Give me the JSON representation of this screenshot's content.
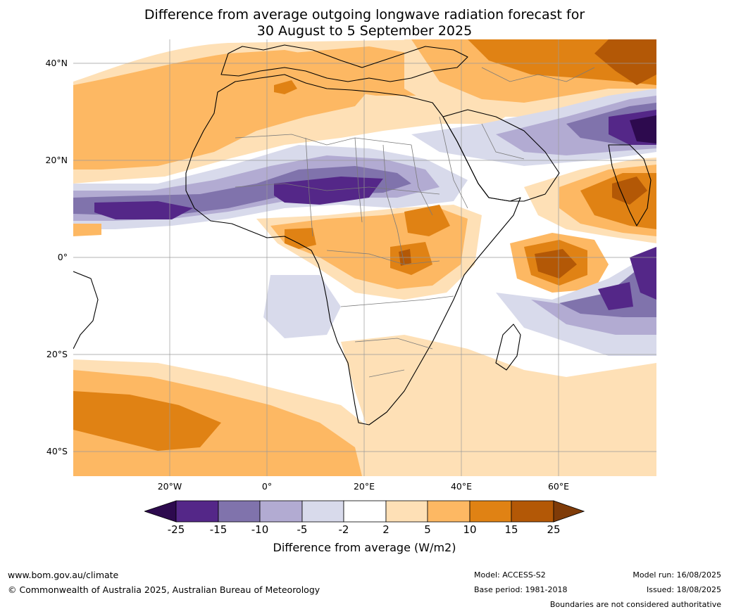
{
  "title": {
    "line1": "Difference from average outgoing longwave radiation forecast for",
    "line2": "30 August to 5 September 2025"
  },
  "map": {
    "lat_labels": [
      "40°N",
      "20°N",
      "0°",
      "20°S",
      "40°S"
    ],
    "lon_labels": [
      "20°W",
      "0°",
      "20°E",
      "40°E",
      "60°E"
    ],
    "colors": {
      "below_-25": "#2d0a4e",
      "-25_-15": "#542788",
      "-15_-10": "#8073ac",
      "-10_-5": "#b2abd2",
      "-5_-2": "#d8daeb",
      "-2_2": "#ffffff",
      "2_5": "#fee0b6",
      "5_10": "#fdb863",
      "10_15": "#e08214",
      "15_25": "#b35806",
      "above_25": "#7f3b08"
    }
  },
  "colorbar": {
    "ticks": [
      "-25",
      "-15",
      "-10",
      "-5",
      "-2",
      "2",
      "5",
      "10",
      "15",
      "25"
    ],
    "label": "Difference from average (W/m2)"
  },
  "footer": {
    "website": "www.bom.gov.au/climate",
    "copyright": "© Commonwealth of Australia 2025, Australian Bureau of Meteorology",
    "model": "Model: ACCESS-S2",
    "base_period": "Base period: 1981-2018",
    "model_run": "Model run: 16/08/2025",
    "issued": "Issued: 18/08/2025",
    "disclaimer": "Boundaries are not considered authoritative"
  }
}
